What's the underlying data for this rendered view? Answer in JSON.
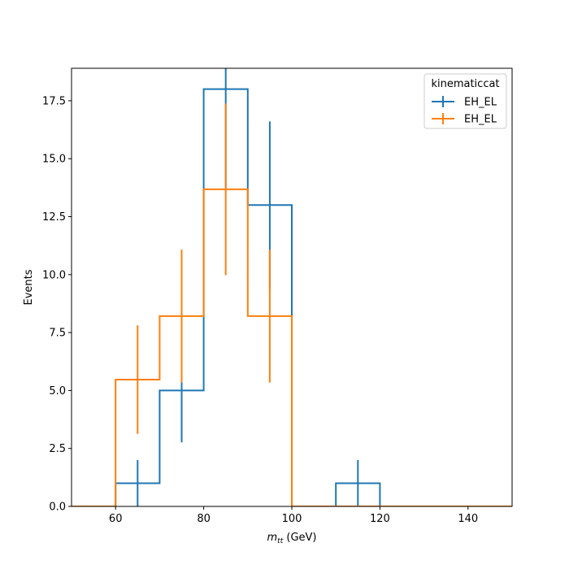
{
  "chart_data": {
    "type": "histogram-step",
    "xlabel_base": "m",
    "xlabel_sub": "tt",
    "xlabel_unit": " (GeV)",
    "ylabel": "Events",
    "xlim": [
      50,
      150
    ],
    "ylim": [
      0,
      18.9
    ],
    "xticks": [
      60,
      80,
      100,
      120,
      140
    ],
    "yticks": [
      0.0,
      2.5,
      5.0,
      7.5,
      10.0,
      12.5,
      15.0,
      17.5
    ],
    "bin_edges": [
      50,
      60,
      70,
      80,
      90,
      100,
      110,
      120,
      130,
      140,
      150
    ],
    "legend_title": "kinematiccat",
    "legend_position": "top-right",
    "grid": false,
    "series": [
      {
        "name": "EH_EL",
        "color": "#1f77b4",
        "values": [
          0,
          1,
          5,
          18,
          13,
          0,
          1,
          0,
          0,
          0
        ]
      },
      {
        "name": "EH_EL",
        "color": "#ff7f0e",
        "values": [
          0,
          5.47,
          8.21,
          13.68,
          8.21,
          0,
          0,
          0,
          0,
          0
        ]
      }
    ]
  }
}
